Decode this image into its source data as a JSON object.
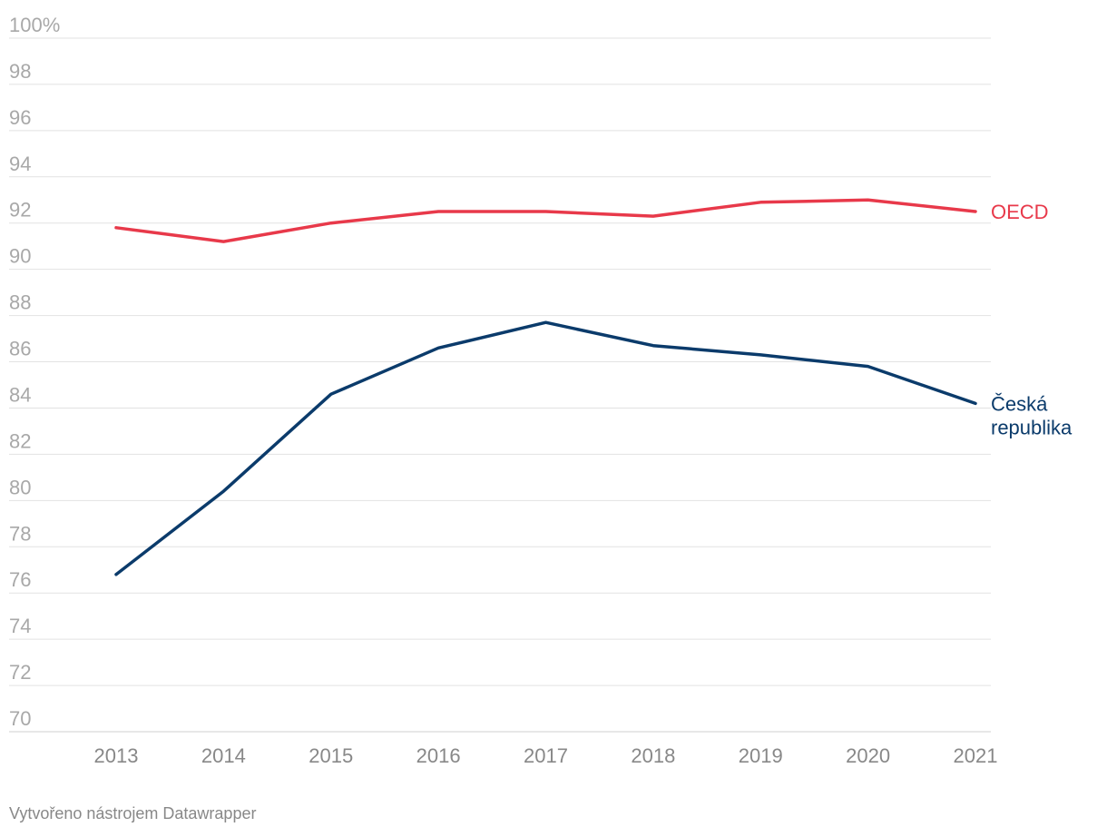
{
  "chart_data": {
    "type": "line",
    "x": [
      "2013",
      "2014",
      "2015",
      "2016",
      "2017",
      "2018",
      "2019",
      "2020",
      "2021"
    ],
    "y_ticks": [
      "100%",
      "98",
      "96",
      "94",
      "92",
      "90",
      "88",
      "86",
      "84",
      "82",
      "80",
      "78",
      "76",
      "74",
      "72",
      "70"
    ],
    "ylim": [
      70,
      100
    ],
    "grid": true,
    "series": [
      {
        "name": "OECD",
        "label_lines": [
          "OECD"
        ],
        "color": "#e8394a",
        "values": [
          91.8,
          91.2,
          92.0,
          92.5,
          92.5,
          92.3,
          92.9,
          93.0,
          92.5
        ]
      },
      {
        "name": "Česká republika",
        "label_lines": [
          "Česká",
          "republika"
        ],
        "color": "#0b3b6b",
        "values": [
          76.8,
          80.4,
          84.6,
          86.6,
          87.7,
          86.7,
          86.3,
          85.8,
          84.2
        ]
      }
    ]
  },
  "footer": {
    "credit": "Vytvořeno nástrojem Datawrapper"
  }
}
